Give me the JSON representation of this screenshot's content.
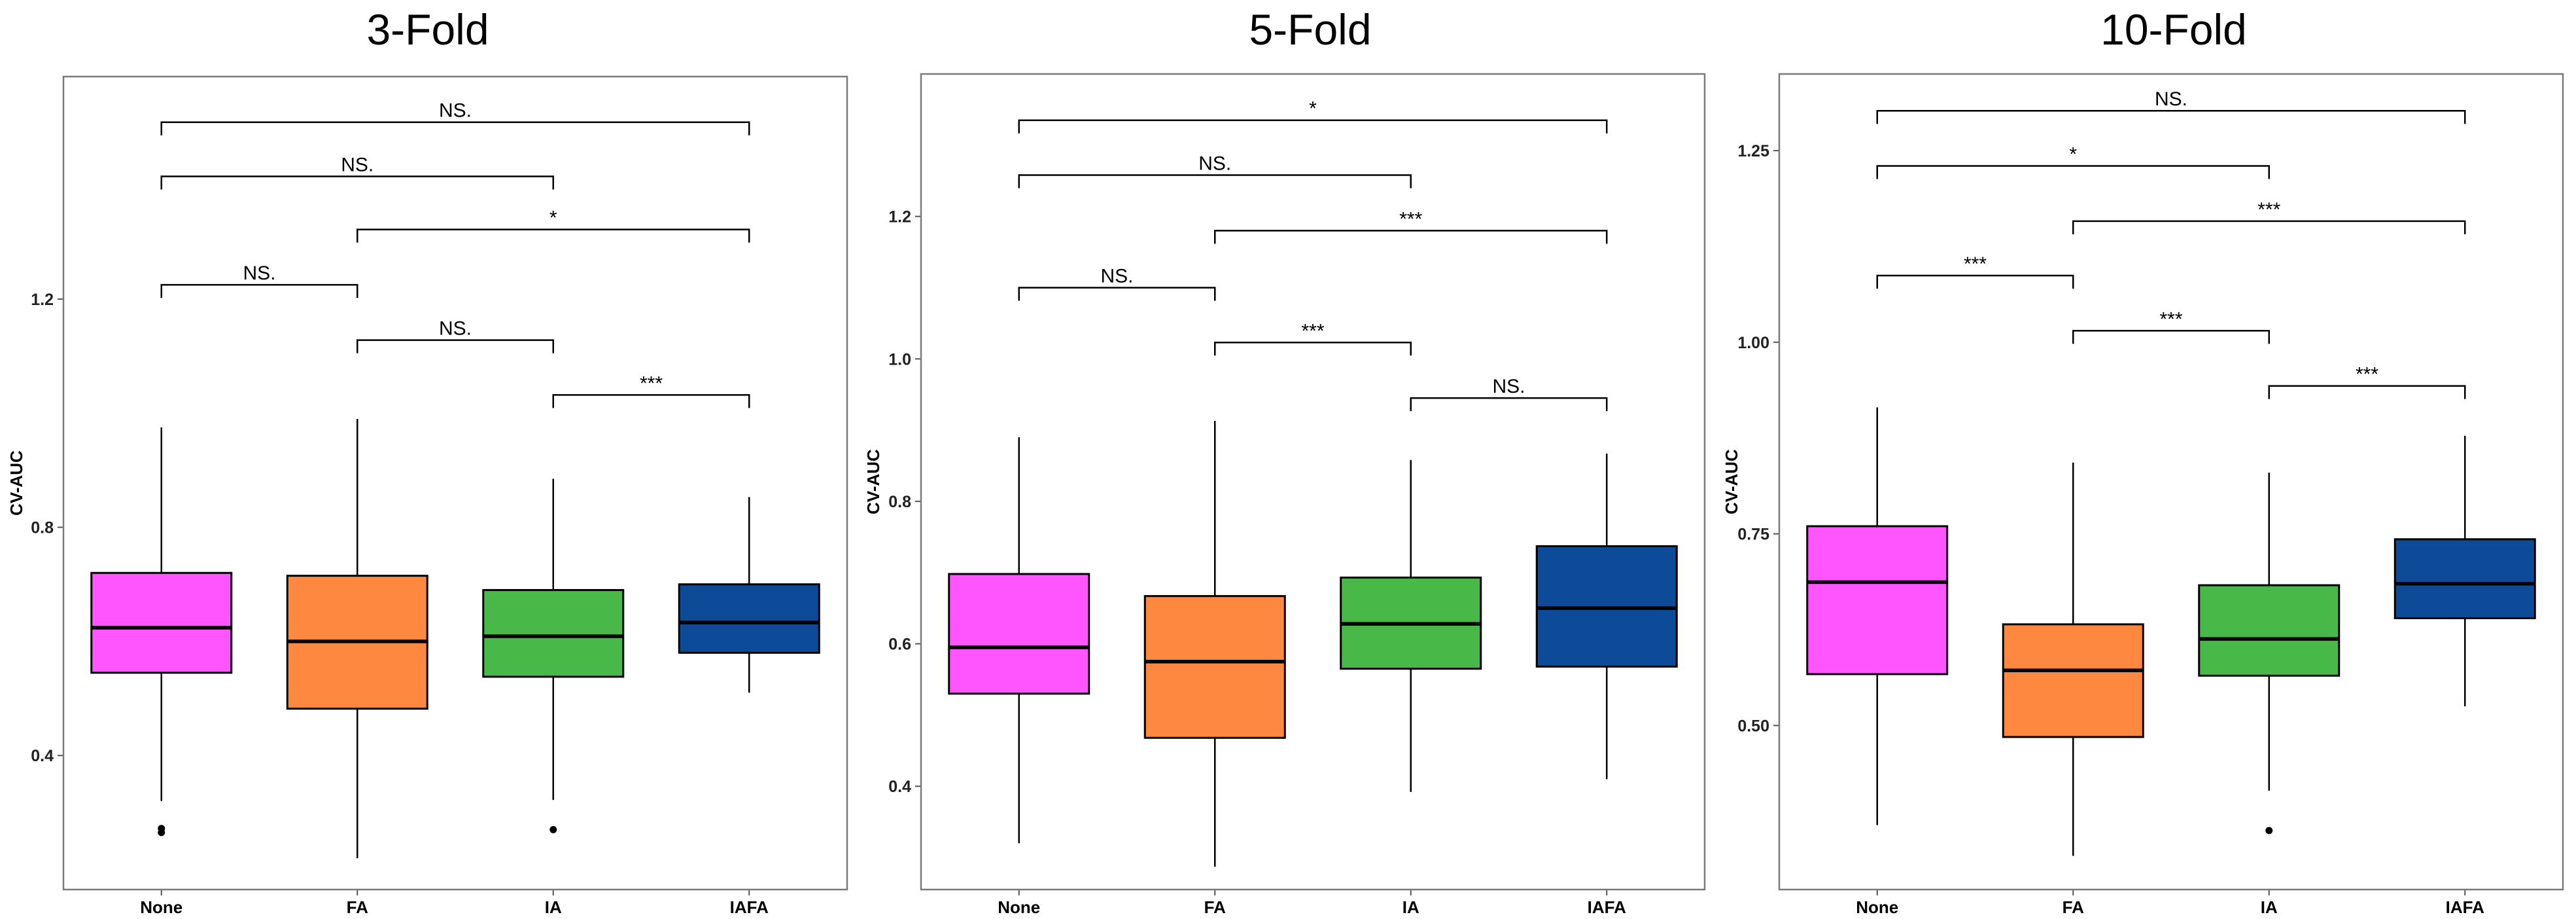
{
  "chart_data": [
    {
      "type": "box",
      "title": "3-Fold",
      "ylabel": "CV-AUC",
      "xlabel": "",
      "ylim": [
        0.165,
        1.59
      ],
      "yticks": [
        "0.4",
        "0.8",
        "1.2"
      ],
      "ytick_values": [
        0.4,
        0.8,
        1.2
      ],
      "categories": [
        "None",
        "FA",
        "IA",
        "IAFA"
      ],
      "boxes": [
        {
          "min": 0.32,
          "q1": 0.545,
          "median": 0.624,
          "q3": 0.72,
          "max": 0.975,
          "outliers": [
            0.265,
            0.272
          ]
        },
        {
          "min": 0.22,
          "q1": 0.482,
          "median": 0.6,
          "q3": 0.715,
          "max": 0.99,
          "outliers": []
        },
        {
          "min": 0.322,
          "q1": 0.538,
          "median": 0.609,
          "q3": 0.69,
          "max": 0.885,
          "outliers": [
            0.27
          ]
        },
        {
          "min": 0.51,
          "q1": 0.58,
          "median": 0.633,
          "q3": 0.7,
          "max": 0.853,
          "outliers": []
        }
      ],
      "comparisons": [
        {
          "from": 0,
          "to": 3,
          "y": 1.51,
          "label": "NS."
        },
        {
          "from": 0,
          "to": 2,
          "y": 1.415,
          "label": "NS."
        },
        {
          "from": 1,
          "to": 3,
          "y": 1.322,
          "label": "*"
        },
        {
          "from": 0,
          "to": 1,
          "y": 1.225,
          "label": "NS."
        },
        {
          "from": 1,
          "to": 2,
          "y": 1.128,
          "label": "NS."
        },
        {
          "from": 2,
          "to": 3,
          "y": 1.032,
          "label": "***"
        }
      ]
    },
    {
      "type": "box",
      "title": "5-Fold",
      "ylabel": "CV-AUC",
      "xlabel": "",
      "ylim": [
        0.255,
        1.4
      ],
      "yticks": [
        "0.4",
        "0.6",
        "0.8",
        "1.0",
        "1.2"
      ],
      "ytick_values": [
        0.4,
        0.6,
        0.8,
        1.0,
        1.2
      ],
      "categories": [
        "None",
        "FA",
        "IA",
        "IAFA"
      ],
      "boxes": [
        {
          "min": 0.32,
          "q1": 0.53,
          "median": 0.595,
          "q3": 0.698,
          "max": 0.89,
          "outliers": []
        },
        {
          "min": 0.287,
          "q1": 0.468,
          "median": 0.575,
          "q3": 0.667,
          "max": 0.913,
          "outliers": []
        },
        {
          "min": 0.392,
          "q1": 0.565,
          "median": 0.628,
          "q3": 0.693,
          "max": 0.858,
          "outliers": []
        },
        {
          "min": 0.41,
          "q1": 0.568,
          "median": 0.65,
          "q3": 0.737,
          "max": 0.867,
          "outliers": []
        }
      ],
      "comparisons": [
        {
          "from": 0,
          "to": 3,
          "y": 1.335,
          "label": "*"
        },
        {
          "from": 0,
          "to": 2,
          "y": 1.258,
          "label": "NS."
        },
        {
          "from": 1,
          "to": 3,
          "y": 1.18,
          "label": "***"
        },
        {
          "from": 0,
          "to": 1,
          "y": 1.1,
          "label": "NS."
        },
        {
          "from": 1,
          "to": 2,
          "y": 1.023,
          "label": "***"
        },
        {
          "from": 2,
          "to": 3,
          "y": 0.945,
          "label": "NS."
        }
      ]
    },
    {
      "type": "box",
      "title": "10-Fold",
      "ylabel": "CV-AUC",
      "xlabel": "",
      "ylim": [
        0.286,
        1.35
      ],
      "yticks": [
        "0.50",
        "0.75",
        "1.00",
        "1.25"
      ],
      "ytick_values": [
        0.5,
        0.75,
        1.0,
        1.25
      ],
      "categories": [
        "None",
        "FA",
        "IA",
        "IAFA"
      ],
      "boxes": [
        {
          "min": 0.37,
          "q1": 0.567,
          "median": 0.687,
          "q3": 0.76,
          "max": 0.915,
          "outliers": []
        },
        {
          "min": 0.33,
          "q1": 0.485,
          "median": 0.572,
          "q3": 0.632,
          "max": 0.843,
          "outliers": []
        },
        {
          "min": 0.415,
          "q1": 0.565,
          "median": 0.613,
          "q3": 0.683,
          "max": 0.83,
          "outliers": [
            0.363
          ]
        },
        {
          "min": 0.525,
          "q1": 0.64,
          "median": 0.685,
          "q3": 0.743,
          "max": 0.878,
          "outliers": []
        }
      ],
      "comparisons": [
        {
          "from": 0,
          "to": 3,
          "y": 1.302,
          "label": "NS."
        },
        {
          "from": 0,
          "to": 2,
          "y": 1.23,
          "label": "*"
        },
        {
          "from": 1,
          "to": 3,
          "y": 1.158,
          "label": "***"
        },
        {
          "from": 0,
          "to": 1,
          "y": 1.087,
          "label": "***"
        },
        {
          "from": 1,
          "to": 2,
          "y": 1.015,
          "label": "***"
        },
        {
          "from": 2,
          "to": 3,
          "y": 0.943,
          "label": "***"
        }
      ]
    }
  ],
  "colors": {
    "None": "#FF55FF",
    "FA": "#FF8840",
    "IA": "#48B848",
    "IAFA": "#0D4A98",
    "outline": "#000000",
    "frame": "#7a7a7a"
  }
}
